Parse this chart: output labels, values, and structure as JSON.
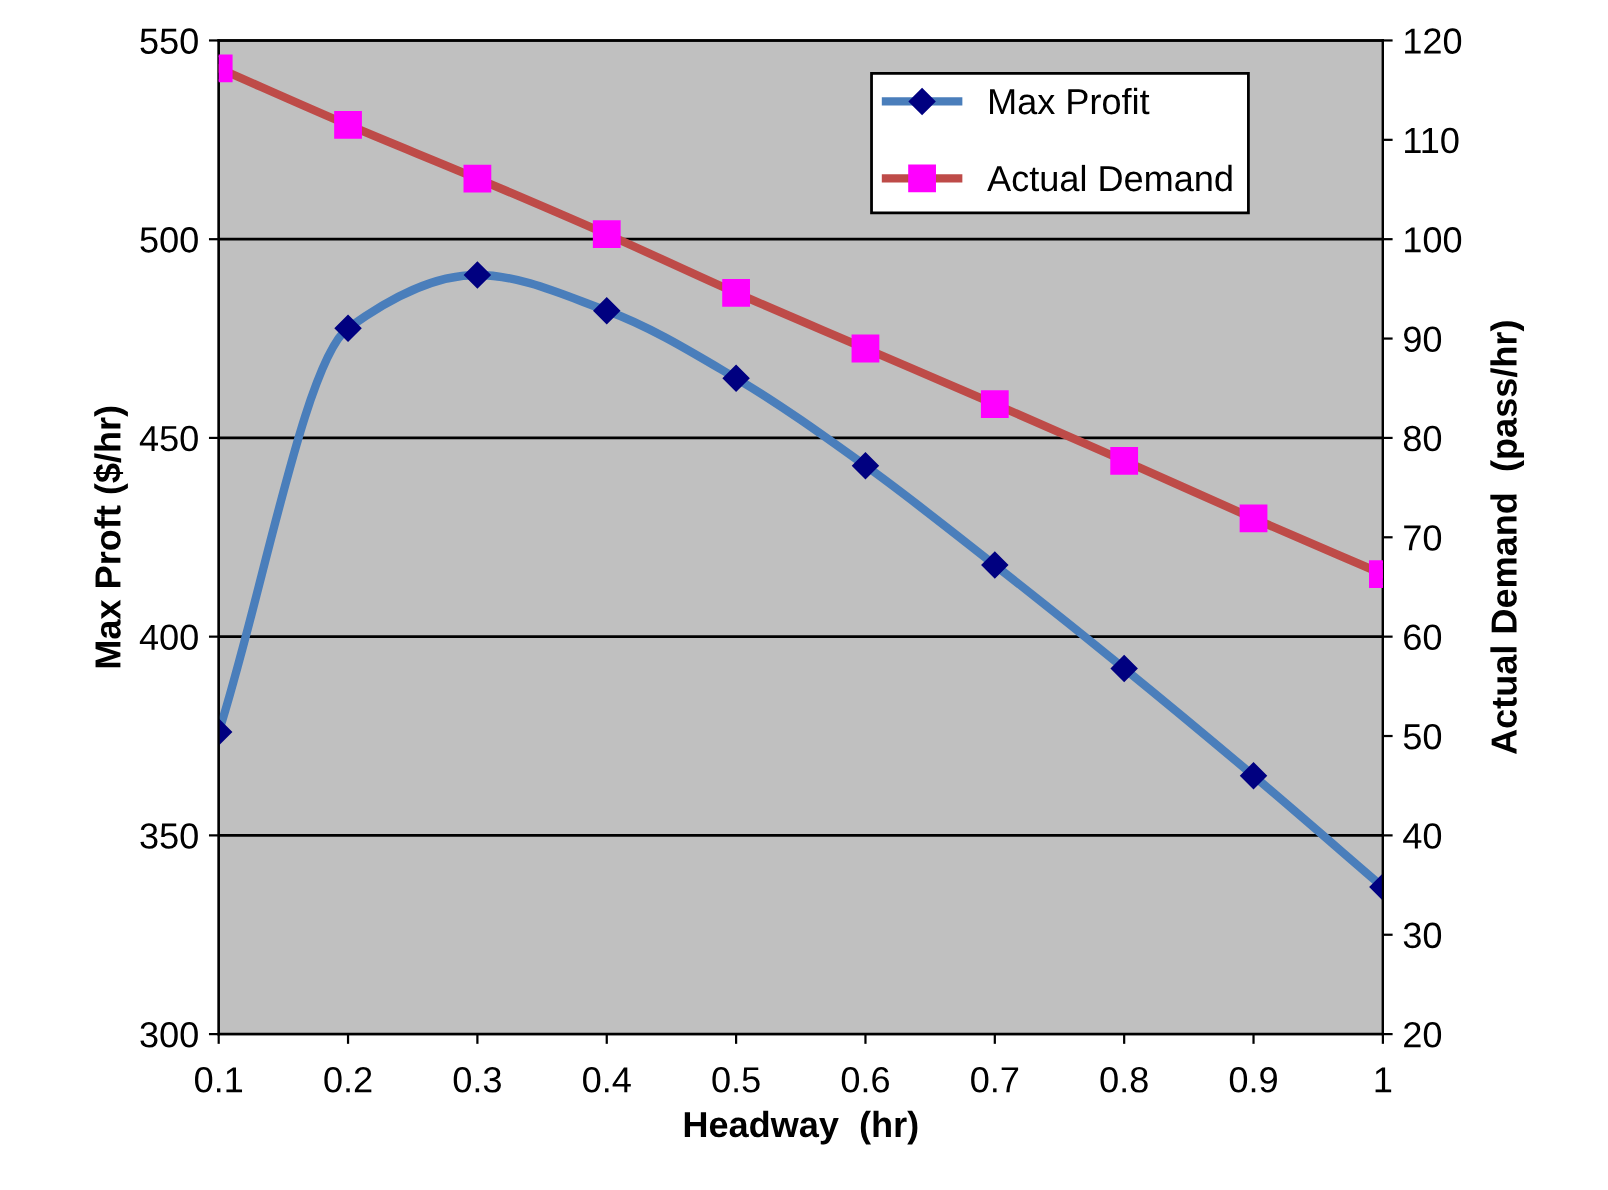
{
  "chart_data": {
    "type": "line",
    "xlabel": "Headway  (hr)",
    "ylabel": "Max Proft ($/hr)",
    "y2label": "Actual Demand  (pass/hr)",
    "x": [
      0.1,
      0.2,
      0.3,
      0.4,
      0.5,
      0.6,
      0.7,
      0.8,
      0.9,
      1
    ],
    "series": [
      {
        "name": "Max Profit",
        "color": "#4a7ebb",
        "marker": "diamond",
        "values": [
          376,
          477.6,
          491,
          482,
          465,
          443,
          418,
          392,
          365,
          337
        ]
      },
      {
        "name": "Actual Demand",
        "color": "#be4b48",
        "marker": "square",
        "axis": "y2",
        "values": [
          117.2,
          111.5,
          106.1,
          100.5,
          94.6,
          89.0,
          83.4,
          77.7,
          71.9,
          66.3
        ]
      }
    ],
    "xlim": [
      0.1,
      1
    ],
    "xticks": [
      0.1,
      0.2,
      0.3,
      0.4,
      0.5,
      0.6,
      0.7,
      0.8,
      0.9,
      {
        "value": 1,
        "label": "1"
      }
    ],
    "ylim": [
      300,
      550
    ],
    "yticks": [
      300,
      350,
      400,
      450,
      500,
      550
    ],
    "y2lim": [
      20,
      120
    ],
    "y2ticks": [
      20,
      30,
      40,
      50,
      60,
      70,
      80,
      90,
      100,
      110,
      120
    ],
    "grid": "y",
    "legend": "top right"
  }
}
